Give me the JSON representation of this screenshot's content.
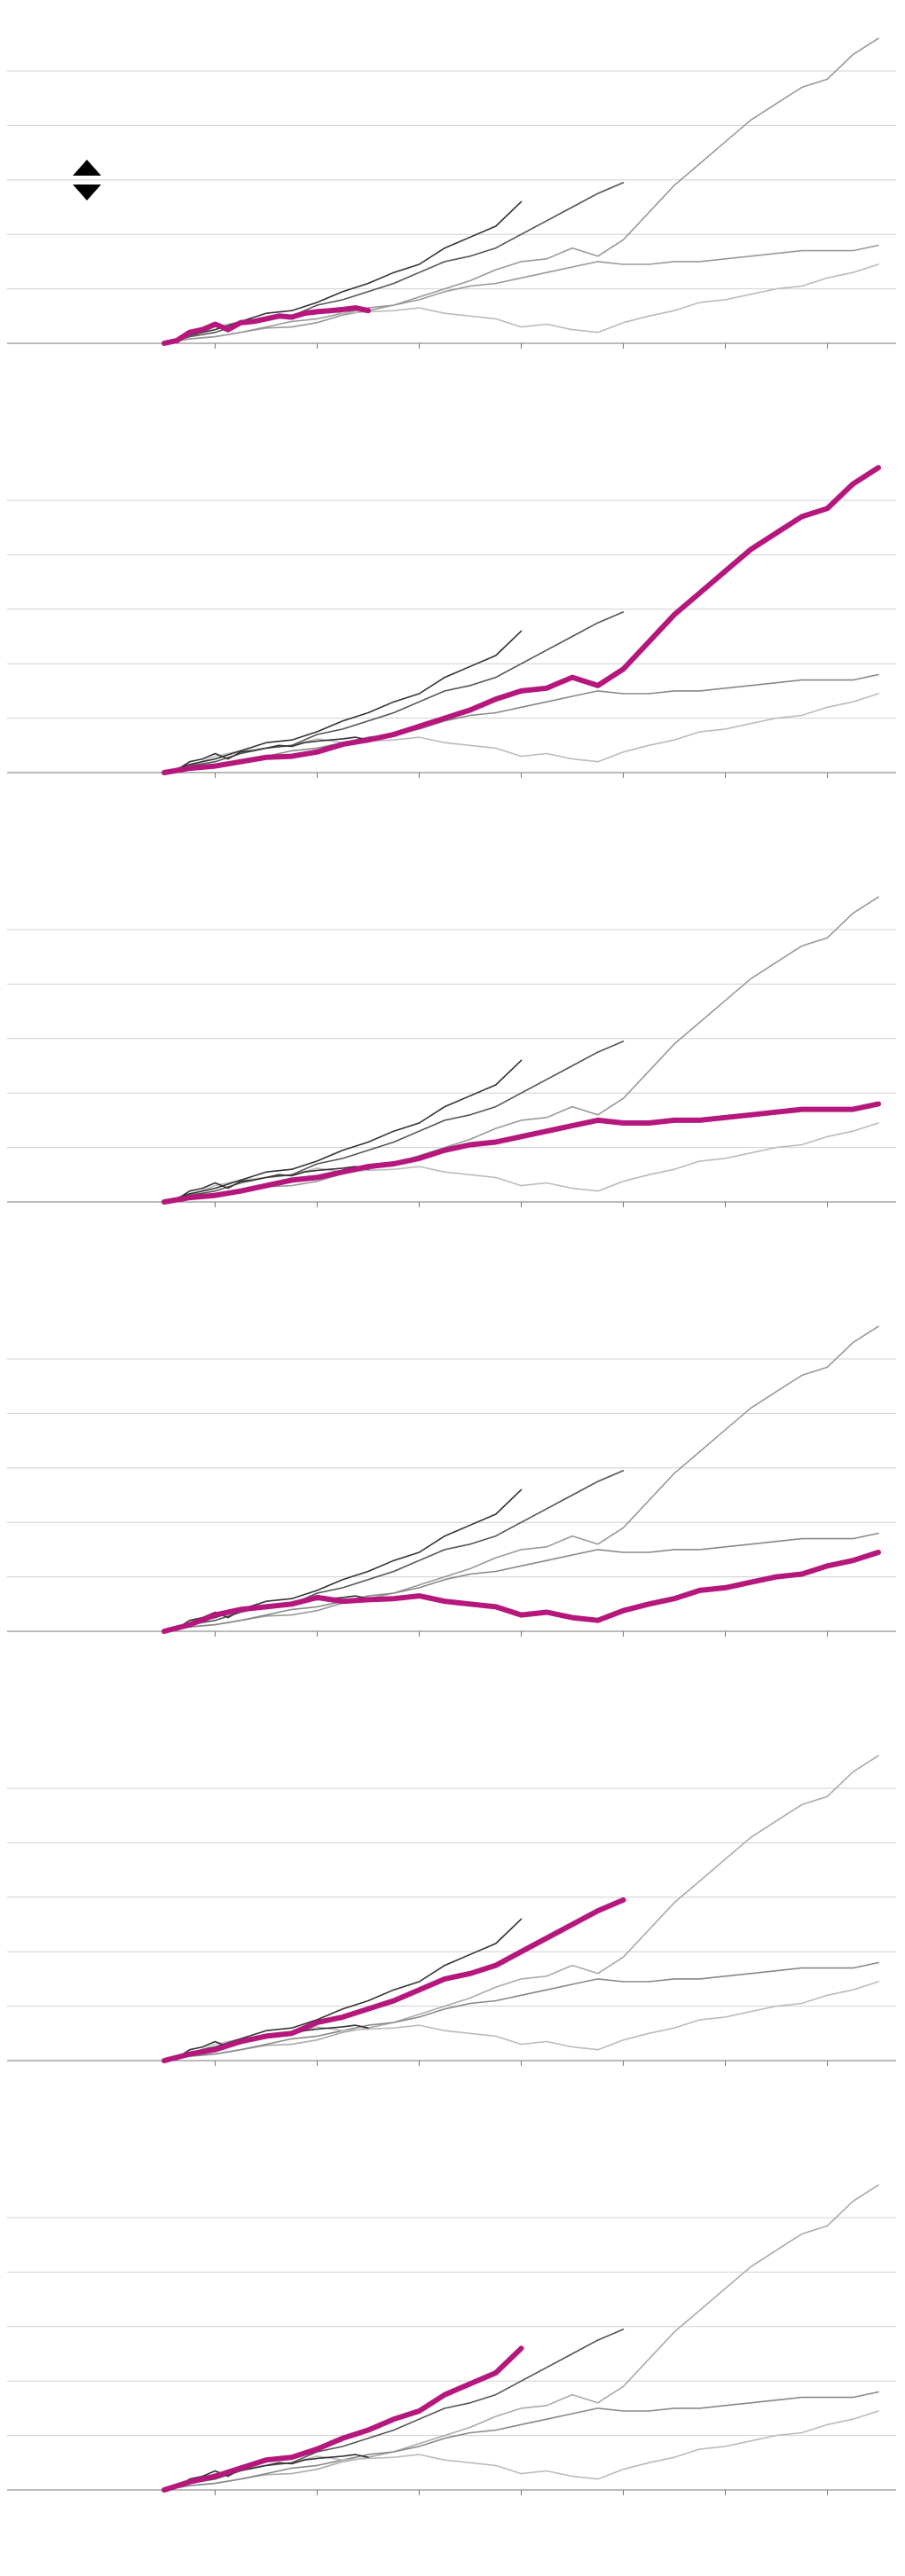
{
  "colors": {
    "highlight": "#b5177c",
    "grid": "#d0d0d0",
    "axis": "#777777",
    "background": "#ffffff",
    "sort_icon": "#000000"
  },
  "sort_control": {
    "icon": "sort-up-down-icon"
  },
  "chart_data": {
    "type": "line",
    "layout": "small-multiples",
    "panel_count": 6,
    "title": "",
    "xlabel": "",
    "ylabel": "",
    "grid": true,
    "legend": "none",
    "xlim": [
      0,
      14
    ],
    "ylim": [
      0,
      5
    ],
    "x_ticks": [
      1,
      3,
      5,
      7,
      9,
      11,
      13
    ],
    "y_gridlines": [
      0,
      1,
      2,
      3,
      4,
      5
    ],
    "series": [
      {
        "color": "#555555",
        "colors_by_panel": [
          "#999999",
          "#b5177c",
          "#999999",
          "#999999",
          "#aaaaaa",
          "#aaaaaa"
        ],
        "x": [
          0.0,
          0.5,
          1.0,
          1.5,
          2.0,
          2.5,
          3.0,
          3.5,
          4.0,
          4.5,
          5.0,
          5.5,
          6.0,
          6.5,
          7.0,
          7.5,
          8.0,
          8.5,
          9.0,
          9.5,
          10.0,
          10.5,
          11.0,
          11.5,
          12.0,
          12.5,
          13.0,
          13.5,
          14.0
        ],
        "values": [
          0.0,
          0.08,
          0.12,
          0.2,
          0.28,
          0.3,
          0.38,
          0.52,
          0.6,
          0.7,
          0.85,
          1.0,
          1.15,
          1.35,
          1.5,
          1.55,
          1.75,
          1.6,
          1.9,
          2.4,
          2.9,
          3.3,
          3.7,
          4.1,
          4.4,
          4.7,
          4.85,
          5.3,
          5.6
        ]
      },
      {
        "color": "#555555",
        "colors_by_panel": [
          "#999999",
          "#888888",
          "#b5177c",
          "#888888",
          "#888888",
          "#888888"
        ],
        "x": [
          0.0,
          0.5,
          1.0,
          1.5,
          2.0,
          2.5,
          3.0,
          3.5,
          4.0,
          4.5,
          5.0,
          5.5,
          6.0,
          6.5,
          7.0,
          7.5,
          8.0,
          8.5,
          9.0,
          9.5,
          10.0,
          10.5,
          11.0,
          11.5,
          12.0,
          12.5,
          13.0,
          13.5,
          14.0
        ],
        "values": [
          0.0,
          0.08,
          0.12,
          0.2,
          0.3,
          0.4,
          0.45,
          0.55,
          0.65,
          0.7,
          0.8,
          0.95,
          1.05,
          1.1,
          1.2,
          1.3,
          1.4,
          1.5,
          1.45,
          1.45,
          1.5,
          1.5,
          1.55,
          1.6,
          1.65,
          1.7,
          1.7,
          1.7,
          1.8
        ]
      },
      {
        "color": "#555555",
        "colors_by_panel": [
          "#bbbbbb",
          "#bbbbbb",
          "#bbbbbb",
          "#b5177c",
          "#bbbbbb",
          "#bbbbbb"
        ],
        "x": [
          0.0,
          0.5,
          1.0,
          1.5,
          2.0,
          2.5,
          3.0,
          3.5,
          4.0,
          4.5,
          5.0,
          5.5,
          6.0,
          6.5,
          7.0,
          7.5,
          8.0,
          8.5,
          9.0,
          9.5,
          10.0,
          10.5,
          11.0,
          11.5,
          12.0,
          12.5,
          13.0,
          13.5,
          14.0
        ],
        "values": [
          0.0,
          0.12,
          0.3,
          0.4,
          0.45,
          0.5,
          0.62,
          0.55,
          0.58,
          0.6,
          0.65,
          0.55,
          0.5,
          0.45,
          0.3,
          0.35,
          0.25,
          0.2,
          0.38,
          0.5,
          0.6,
          0.75,
          0.8,
          0.9,
          1.0,
          1.05,
          1.2,
          1.3,
          1.45
        ]
      },
      {
        "color": "#555555",
        "colors_by_panel": [
          "#555555",
          "#555555",
          "#555555",
          "#555555",
          "#b5177c",
          "#555555"
        ],
        "x": [
          0.0,
          0.5,
          1.0,
          1.5,
          2.0,
          2.5,
          3.0,
          3.5,
          4.0,
          4.5,
          5.0,
          5.5,
          6.0,
          6.5,
          7.0,
          7.5,
          8.0,
          8.5,
          9.0
        ],
        "values": [
          0.0,
          0.12,
          0.2,
          0.35,
          0.45,
          0.5,
          0.7,
          0.8,
          0.95,
          1.1,
          1.3,
          1.5,
          1.6,
          1.75,
          2.0,
          2.25,
          2.5,
          2.75,
          2.95
        ]
      },
      {
        "color": "#555555",
        "colors_by_panel": [
          "#333333",
          "#333333",
          "#333333",
          "#333333",
          "#333333",
          "#b5177c"
        ],
        "x": [
          0.0,
          0.5,
          1.0,
          1.5,
          2.0,
          2.5,
          3.0,
          3.5,
          4.0,
          4.5,
          5.0,
          5.5,
          6.0,
          6.5,
          7.0
        ],
        "values": [
          0.0,
          0.15,
          0.25,
          0.4,
          0.55,
          0.6,
          0.75,
          0.95,
          1.1,
          1.3,
          1.45,
          1.75,
          1.95,
          2.15,
          2.6
        ]
      },
      {
        "color": "#555555",
        "colors_by_panel": [
          "#b5177c",
          "#333333",
          "#333333",
          "#333333",
          "#333333",
          "#333333"
        ],
        "x": [
          0.0,
          0.25,
          0.5,
          0.75,
          1.0,
          1.25,
          1.5,
          1.75,
          2.0,
          2.25,
          2.5,
          2.75,
          3.0,
          3.25,
          3.5,
          3.75,
          4.0
        ],
        "values": [
          0.0,
          0.05,
          0.2,
          0.25,
          0.35,
          0.25,
          0.38,
          0.4,
          0.45,
          0.5,
          0.48,
          0.55,
          0.58,
          0.6,
          0.62,
          0.65,
          0.6
        ]
      }
    ]
  }
}
